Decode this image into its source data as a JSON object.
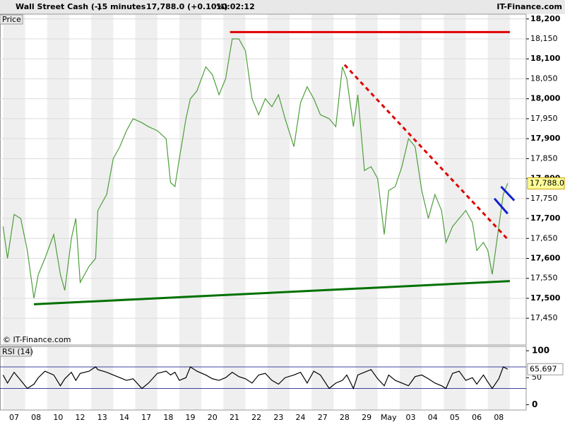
{
  "header": {
    "instrument": "Wall Street Cash (-)",
    "interval": "15 minutes",
    "quote": "17,788.0 (+0.10%)",
    "time": "10:02:12",
    "brand": "IT-Finance.com"
  },
  "chart_data": [
    {
      "type": "line",
      "panel_label": "Price",
      "watermark": "© IT-Finance.com",
      "color": "#4f9e3c",
      "x": [
        -0.5,
        -0.3,
        0,
        0.3,
        0.6,
        0.9,
        1.1,
        1.4,
        1.8,
        2.1,
        2.3,
        2.6,
        2.8,
        3.0,
        3.4,
        3.7,
        3.8,
        4.2,
        4.5,
        4.8,
        5.1,
        5.4,
        5.8,
        6.1,
        6.5,
        6.9,
        7.1,
        7.3,
        7.5,
        7.8,
        8.0,
        8.3,
        8.7,
        9.0,
        9.3,
        9.6,
        9.9,
        10.2,
        10.5,
        10.8,
        11.1,
        11.4,
        11.7,
        12.0,
        12.3,
        12.7,
        13.0,
        13.3,
        13.6,
        13.9,
        14.3,
        14.6,
        14.9,
        15.1,
        15.4,
        15.6,
        15.9,
        16.2,
        16.5,
        16.8,
        17.0,
        17.3,
        17.6,
        17.9,
        18.2,
        18.5,
        18.8,
        19.1,
        19.4,
        19.6,
        19.9,
        20.2,
        20.5,
        20.8,
        21.0,
        21.3,
        21.5,
        21.7,
        22.0,
        22.2,
        22.4
      ],
      "values": [
        17680,
        17600,
        17710,
        17700,
        17620,
        17500,
        17560,
        17600,
        17660,
        17560,
        17520,
        17650,
        17700,
        17540,
        17580,
        17600,
        17720,
        17760,
        17850,
        17880,
        17920,
        17950,
        17940,
        17930,
        17920,
        17900,
        17790,
        17780,
        17850,
        17950,
        18000,
        18020,
        18080,
        18060,
        18010,
        18050,
        18150,
        18150,
        18120,
        18000,
        17960,
        18000,
        17980,
        18010,
        17950,
        17880,
        17990,
        18030,
        18000,
        17960,
        17950,
        17930,
        18080,
        18050,
        17930,
        18010,
        17820,
        17830,
        17800,
        17660,
        17770,
        17780,
        17830,
        17900,
        17880,
        17770,
        17700,
        17760,
        17720,
        17640,
        17680,
        17700,
        17720,
        17690,
        17620,
        17640,
        17620,
        17560,
        17680,
        17760,
        17788
      ],
      "last": {
        "value": 17788.0,
        "label": "17,788.0"
      },
      "xlim": [
        -0.64,
        23.24
      ],
      "xticks": [
        {
          "value": 0,
          "label": "07"
        },
        {
          "value": 1,
          "label": "08"
        },
        {
          "value": 2,
          "label": "10"
        },
        {
          "value": 3,
          "label": "12"
        },
        {
          "value": 4,
          "label": "13"
        },
        {
          "value": 5,
          "label": "14"
        },
        {
          "value": 6,
          "label": "17"
        },
        {
          "value": 7,
          "label": "18"
        },
        {
          "value": 8,
          "label": "19"
        },
        {
          "value": 9,
          "label": "20"
        },
        {
          "value": 10,
          "label": "21"
        },
        {
          "value": 11,
          "label": "22"
        },
        {
          "value": 12,
          "label": "23"
        },
        {
          "value": 13,
          "label": "24"
        },
        {
          "value": 14,
          "label": "27"
        },
        {
          "value": 15,
          "label": "28"
        },
        {
          "value": 16,
          "label": "29"
        },
        {
          "value": 17,
          "label": "May"
        },
        {
          "value": 18,
          "label": "03"
        },
        {
          "value": 19,
          "label": "04"
        },
        {
          "value": 20,
          "label": "05"
        },
        {
          "value": 21,
          "label": "06"
        },
        {
          "value": 22,
          "label": "08"
        }
      ],
      "ylim": [
        17383,
        18212
      ],
      "yticks": [
        {
          "value": 17450,
          "label": "17,450"
        },
        {
          "value": 17500,
          "label": "17,500"
        },
        {
          "value": 17550,
          "label": "17,550"
        },
        {
          "value": 17600,
          "label": "17,600"
        },
        {
          "value": 17650,
          "label": "17,650"
        },
        {
          "value": 17700,
          "label": "17,700"
        },
        {
          "value": 17750,
          "label": "17,750"
        },
        {
          "value": 17800,
          "label": "17,800"
        },
        {
          "value": 17850,
          "label": "17,850"
        },
        {
          "value": 17900,
          "label": "17,900"
        },
        {
          "value": 17950,
          "label": "17,950"
        },
        {
          "value": 18000,
          "label": "18,000"
        },
        {
          "value": 18050,
          "label": "18,050"
        },
        {
          "value": 18100,
          "label": "18,100"
        },
        {
          "value": 18150,
          "label": "18,150"
        },
        {
          "value": 18200,
          "label": "18,200"
        }
      ],
      "lines": [
        {
          "color": "#e00000",
          "style": "solid",
          "x": [
            9.8,
            22.5
          ],
          "y": [
            18167,
            18167
          ]
        },
        {
          "color": "#e00000",
          "style": "dashed",
          "x": [
            15.0,
            22.4
          ],
          "y": [
            18085,
            17648
          ]
        },
        {
          "color": "#007000",
          "style": "solid",
          "x": [
            0.9,
            22.5
          ],
          "y": [
            17485,
            17543
          ]
        },
        {
          "color": "#1020d0",
          "style": "solid",
          "x": [
            21.8,
            22.4
          ],
          "y": [
            17750,
            17712
          ]
        },
        {
          "color": "#1020d0",
          "style": "solid",
          "x": [
            22.1,
            22.7
          ],
          "y": [
            17780,
            17745
          ]
        }
      ]
    },
    {
      "type": "line",
      "panel_label": "RSI (14)",
      "color": "#000000",
      "values": [
        55,
        40,
        60,
        45,
        30,
        38,
        50,
        62,
        55,
        35,
        48,
        60,
        45,
        58,
        62,
        70,
        65,
        60,
        55,
        50,
        45,
        48,
        30,
        40,
        58,
        62,
        55,
        60,
        45,
        50,
        70,
        62,
        55,
        48,
        45,
        50,
        60,
        52,
        48,
        40,
        55,
        58,
        45,
        38,
        50,
        55,
        60,
        40,
        62,
        55,
        30,
        40,
        45,
        55,
        30,
        55,
        60,
        65,
        48,
        35,
        55,
        45,
        40,
        35,
        52,
        55,
        48,
        40,
        35,
        30,
        58,
        62,
        45,
        50,
        38,
        55,
        42,
        30,
        48,
        70,
        65.697
      ],
      "last": 65.697,
      "ylim": [
        -10,
        108
      ],
      "yticks": [
        0,
        50,
        100
      ],
      "bands": [
        30,
        70
      ]
    }
  ]
}
